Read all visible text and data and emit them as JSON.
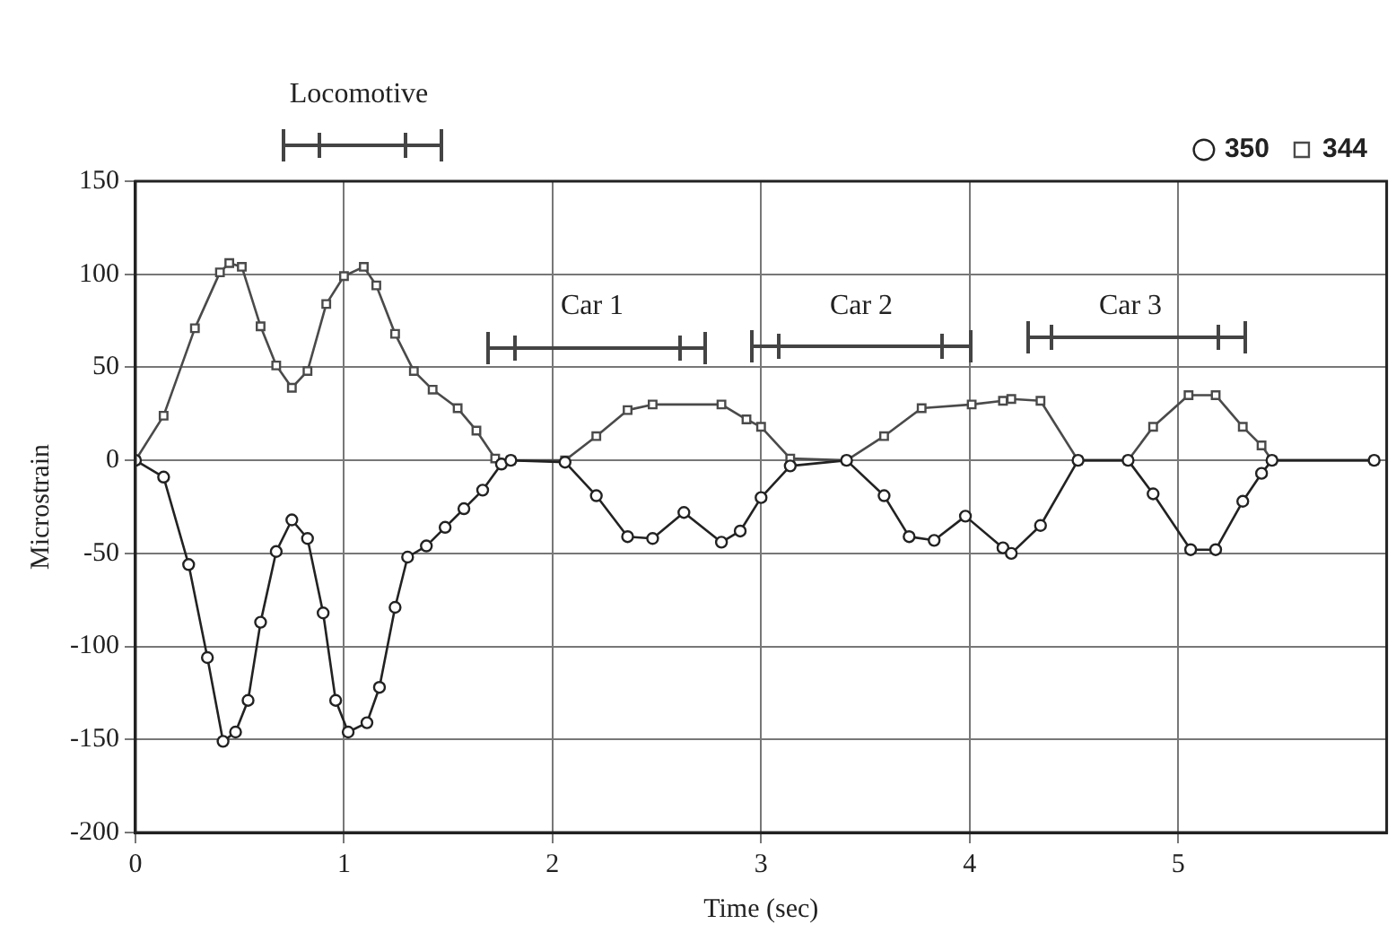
{
  "chart_data": {
    "type": "line",
    "xlabel": "Time (sec)",
    "ylabel": "Microstrain",
    "xlim": [
      0,
      6
    ],
    "xticks": [
      0,
      1,
      2,
      3,
      4,
      5
    ],
    "ylim": [
      -200,
      150
    ],
    "yticks": [
      -200,
      -150,
      -100,
      -50,
      0,
      50,
      100,
      150
    ],
    "grid": true,
    "legend": "top right",
    "line_style": "solid",
    "annotations": [
      "Locomotive",
      "Car 1",
      "Car 2",
      "Car 3"
    ],
    "series": [
      {
        "name": "350",
        "color": "#222222",
        "marker": "circle",
        "x": [
          0,
          0.135,
          0.255,
          0.345,
          0.42,
          0.48,
          0.54,
          0.6,
          0.675,
          0.75,
          0.825,
          0.9,
          0.96,
          1.02,
          1.11,
          1.17,
          1.245,
          1.305,
          1.395,
          1.485,
          1.575,
          1.665,
          1.755,
          1.8,
          2.06,
          2.21,
          2.36,
          2.48,
          2.63,
          2.81,
          2.9,
          3.0,
          3.14,
          3.41,
          3.59,
          3.71,
          3.83,
          3.98,
          4.16,
          4.2,
          4.34,
          4.52,
          4.76,
          4.88,
          5.06,
          5.18,
          5.31,
          5.4,
          5.45,
          5.94
        ],
        "values": [
          0,
          -9,
          -56,
          -106,
          -151,
          -146,
          -129,
          -87,
          -49,
          -32,
          -42,
          -82,
          -129,
          -146,
          -141,
          -122,
          -79,
          -52,
          -46,
          -36,
          -26,
          -16,
          -2,
          0,
          -1,
          -19,
          -41,
          -42,
          -28,
          -44,
          -38,
          -20,
          -3,
          0,
          -19,
          -41,
          -43,
          -30,
          -47,
          -50,
          -35,
          0,
          0,
          -18,
          -48,
          -48,
          -22,
          -7,
          0,
          0
        ]
      },
      {
        "name": "344",
        "color": "#4a4a4a",
        "marker": "square",
        "x": [
          0,
          0.135,
          0.285,
          0.405,
          0.45,
          0.51,
          0.6,
          0.675,
          0.75,
          0.825,
          0.915,
          1.0,
          1.095,
          1.155,
          1.245,
          1.335,
          1.425,
          1.545,
          1.635,
          1.725,
          1.8,
          2.06,
          2.21,
          2.36,
          2.48,
          2.81,
          2.93,
          3.0,
          3.14,
          3.41,
          3.59,
          3.77,
          4.01,
          4.16,
          4.2,
          4.34,
          4.52,
          4.76,
          4.88,
          5.05,
          5.18,
          5.31,
          5.4,
          5.45,
          5.94
        ],
        "values": [
          0,
          24,
          71,
          101,
          106,
          104,
          72,
          51,
          39,
          48,
          84,
          99,
          104,
          94,
          68,
          48,
          38,
          28,
          16,
          1,
          0,
          0,
          13,
          27,
          30,
          30,
          22,
          18,
          1,
          0,
          13,
          28,
          30,
          32,
          33,
          32,
          0,
          0,
          18,
          35,
          35,
          18,
          8,
          0,
          0
        ]
      }
    ]
  }
}
